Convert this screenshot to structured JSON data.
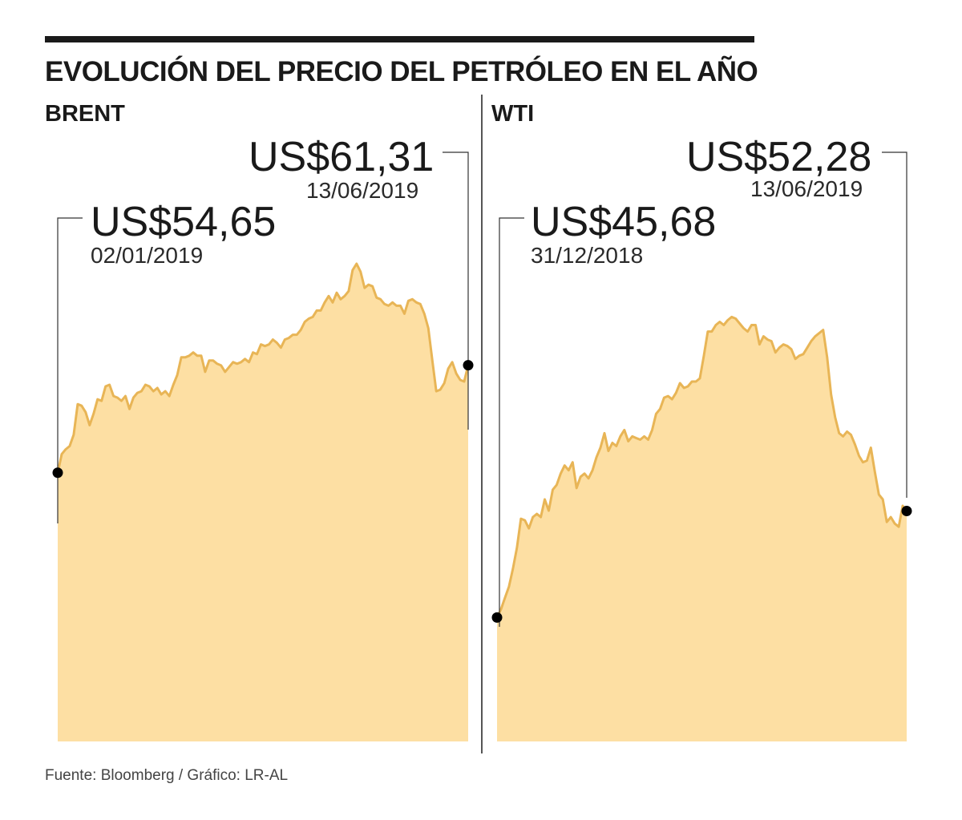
{
  "title": "EVOLUCIÓN DEL PRECIO DEL PETRÓLEO EN EL AÑO",
  "source": "Fuente: Bloomberg / Gráfico: LR-AL",
  "colors": {
    "line": "#e8b556",
    "fill": "#fddfa3",
    "text": "#1a1a1a",
    "marker": "#000000"
  },
  "chart_data": [
    {
      "type": "area",
      "title": "BRENT",
      "start": {
        "value": "US$54,65",
        "date": "02/01/2019",
        "y": 54.65
      },
      "end": {
        "value": "US$61,31",
        "date": "13/06/2019",
        "y": 61.31
      },
      "values": [
        54.65,
        55.8,
        56.1,
        56.3,
        57.0,
        58.9,
        58.8,
        58.4,
        57.6,
        58.3,
        59.2,
        59.1,
        60.0,
        60.1,
        59.4,
        59.3,
        59.1,
        59.4,
        58.6,
        59.3,
        59.6,
        59.7,
        60.1,
        60.0,
        59.7,
        59.9,
        59.5,
        59.7,
        59.4,
        60.1,
        60.7,
        61.8,
        61.8,
        61.9,
        62.1,
        61.9,
        61.9,
        60.9,
        61.6,
        61.6,
        61.4,
        61.3,
        60.9,
        61.2,
        61.5,
        61.4,
        61.5,
        61.7,
        61.5,
        62.1,
        62.0,
        62.6,
        62.5,
        62.6,
        62.9,
        62.7,
        62.4,
        62.9,
        63.0,
        63.2,
        63.2,
        63.5,
        64.0,
        64.2,
        64.3,
        64.7,
        64.7,
        65.2,
        65.6,
        65.2,
        65.8,
        65.4,
        65.6,
        65.9,
        67.2,
        67.6,
        67.1,
        66.1,
        66.3,
        66.2,
        65.5,
        65.4,
        65.1,
        65.0,
        65.2,
        65.0,
        65.0,
        64.5,
        65.3,
        65.4,
        65.2,
        65.1,
        64.5,
        63.6,
        61.6,
        59.7,
        59.8,
        60.2,
        61.1,
        61.5,
        60.8,
        60.4,
        60.3,
        61.31
      ],
      "ylim": [
        38,
        75
      ]
    },
    {
      "type": "area",
      "title": "WTI",
      "start": {
        "value": "US$45,68",
        "date": "31/12/2018",
        "y": 45.68
      },
      "end": {
        "value": "US$52,28",
        "date": "13/06/2019",
        "y": 52.28
      },
      "values": [
        45.68,
        46.2,
        46.9,
        47.6,
        48.7,
        50.0,
        51.8,
        51.7,
        51.2,
        51.9,
        52.1,
        51.9,
        53.0,
        52.3,
        53.6,
        53.9,
        54.6,
        55.1,
        54.8,
        55.3,
        53.7,
        54.4,
        54.6,
        54.3,
        54.8,
        55.6,
        56.2,
        57.1,
        56.0,
        56.5,
        56.3,
        56.9,
        57.3,
        56.6,
        56.9,
        56.8,
        56.7,
        56.9,
        56.7,
        57.3,
        58.3,
        58.6,
        59.3,
        59.4,
        59.2,
        59.6,
        60.2,
        59.9,
        60.0,
        60.3,
        60.3,
        60.5,
        61.9,
        63.4,
        63.4,
        63.8,
        64.0,
        63.8,
        64.1,
        64.3,
        64.2,
        63.9,
        63.6,
        63.4,
        63.8,
        63.8,
        62.6,
        63.1,
        62.9,
        62.8,
        62.1,
        62.4,
        62.6,
        62.5,
        62.3,
        61.7,
        61.9,
        62.0,
        62.4,
        62.8,
        63.1,
        63.3,
        63.5,
        61.8,
        59.5,
        58.1,
        57.1,
        56.9,
        57.2,
        57.0,
        56.4,
        55.7,
        55.3,
        55.4,
        56.2,
        54.7,
        53.3,
        53.0,
        51.6,
        51.9,
        51.5,
        51.3,
        52.6,
        52.28
      ],
      "ylim": [
        38,
        75
      ]
    }
  ]
}
